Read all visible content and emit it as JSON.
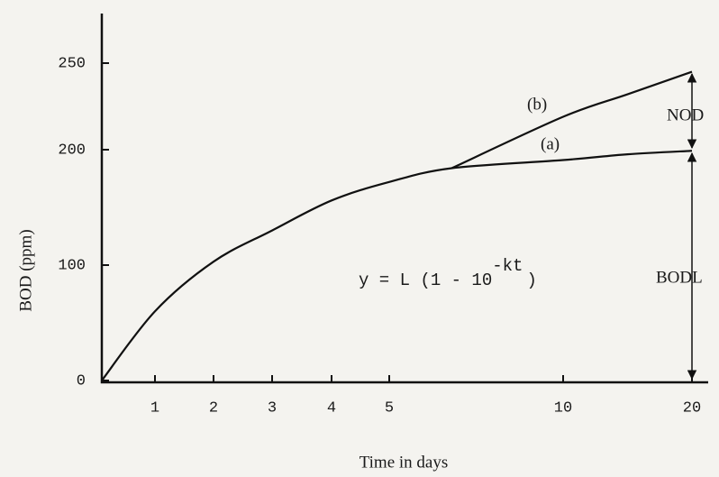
{
  "chart_data": {
    "type": "line",
    "x_label": "Time in days",
    "y_label": "BOD (ppm)",
    "x": [
      0,
      1,
      2,
      3,
      4,
      5,
      6.8,
      10,
      15,
      20
    ],
    "series": [
      {
        "name": "(a)",
        "color": "#111111",
        "values": [
          0,
          60,
          103,
          130,
          156,
          172,
          184,
          191,
          196,
          199
        ]
      },
      {
        "name": "(b)",
        "color": "#111111",
        "values": [
          null,
          null,
          null,
          null,
          null,
          null,
          184,
          219,
          232,
          245
        ]
      }
    ],
    "xlim": [
      0,
      20
    ],
    "xticks": [
      1,
      2,
      3,
      4,
      5,
      10,
      20
    ],
    "ylim": [
      0,
      280
    ],
    "yticks": [
      0,
      100,
      200,
      250
    ],
    "grid": false,
    "annotations": {
      "nod": "NOD",
      "bodl": "BODL",
      "equation": "y  =  L (1 - 10",
      "equation_sup": "-kt",
      "equation_end": ")"
    }
  }
}
